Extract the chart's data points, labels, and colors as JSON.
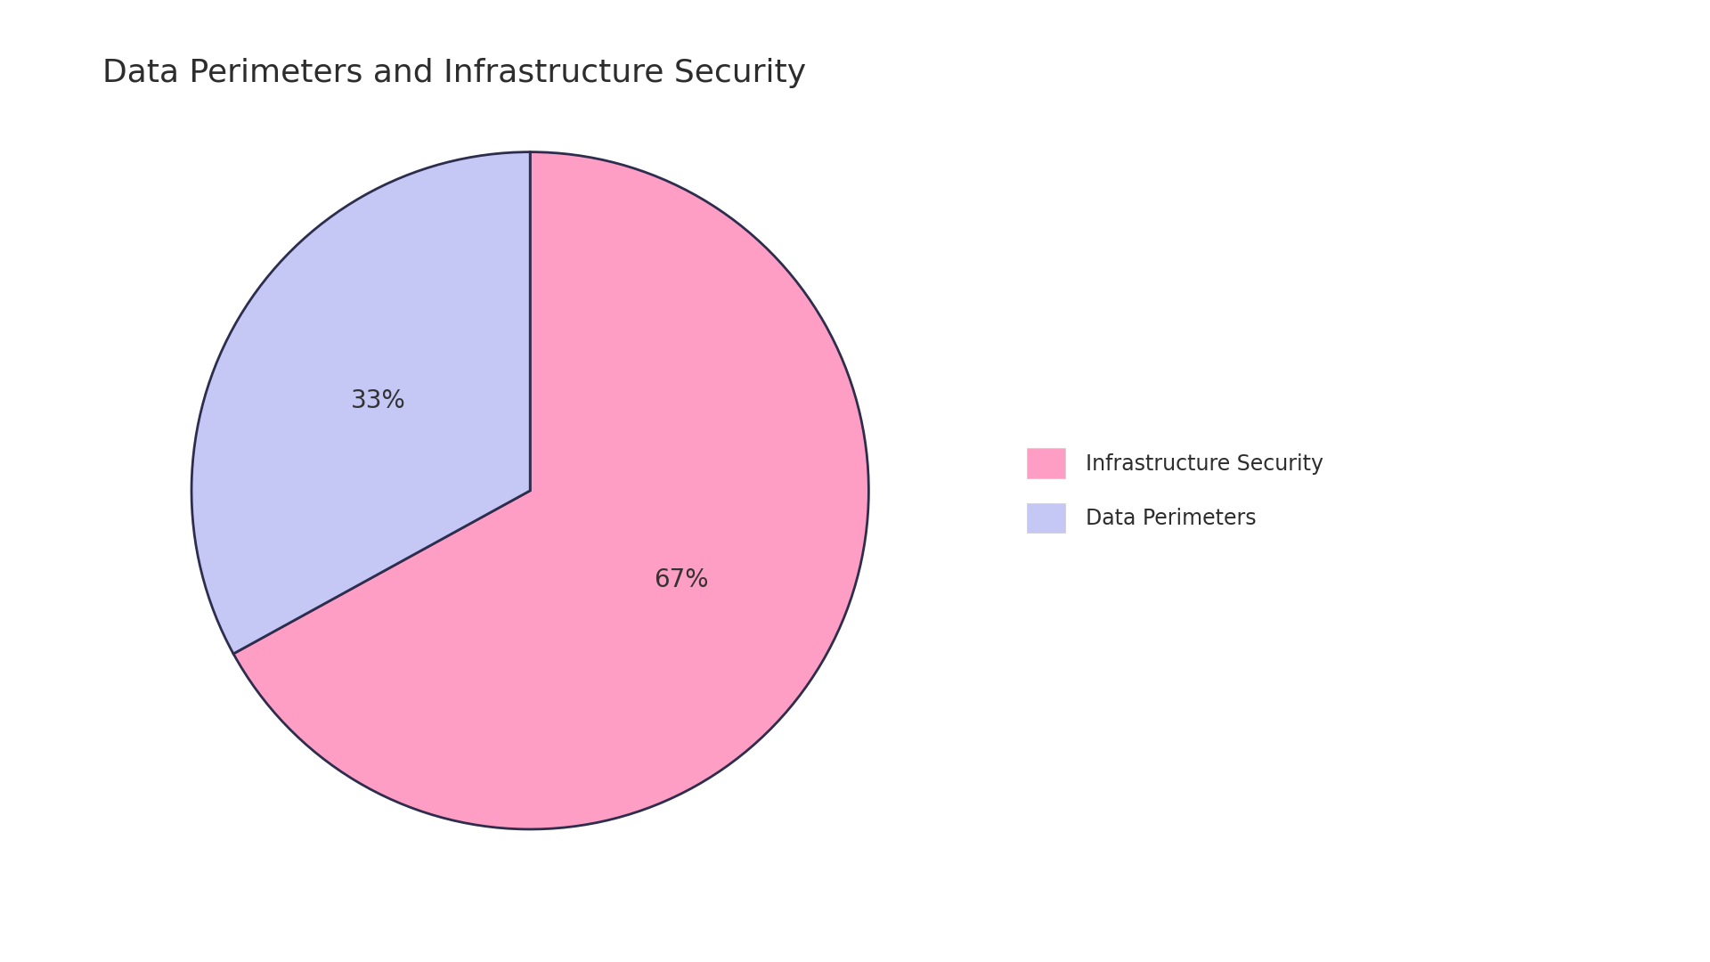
{
  "title": "Data Perimeters and Infrastructure Security",
  "slices": [
    {
      "label": "Infrastructure Security",
      "value": 67,
      "color": "#FF9EC4",
      "pct_label": "67%"
    },
    {
      "label": "Data Perimeters",
      "value": 33,
      "color": "#C5C8F5",
      "pct_label": "33%"
    }
  ],
  "edge_color": "#2d2d4e",
  "edge_linewidth": 2.0,
  "background_color": "#ffffff",
  "title_fontsize": 26,
  "title_color": "#2d2d2d",
  "pct_fontsize": 20,
  "pct_color": "#333333",
  "legend_fontsize": 17,
  "startangle": 90,
  "counterclock": false
}
